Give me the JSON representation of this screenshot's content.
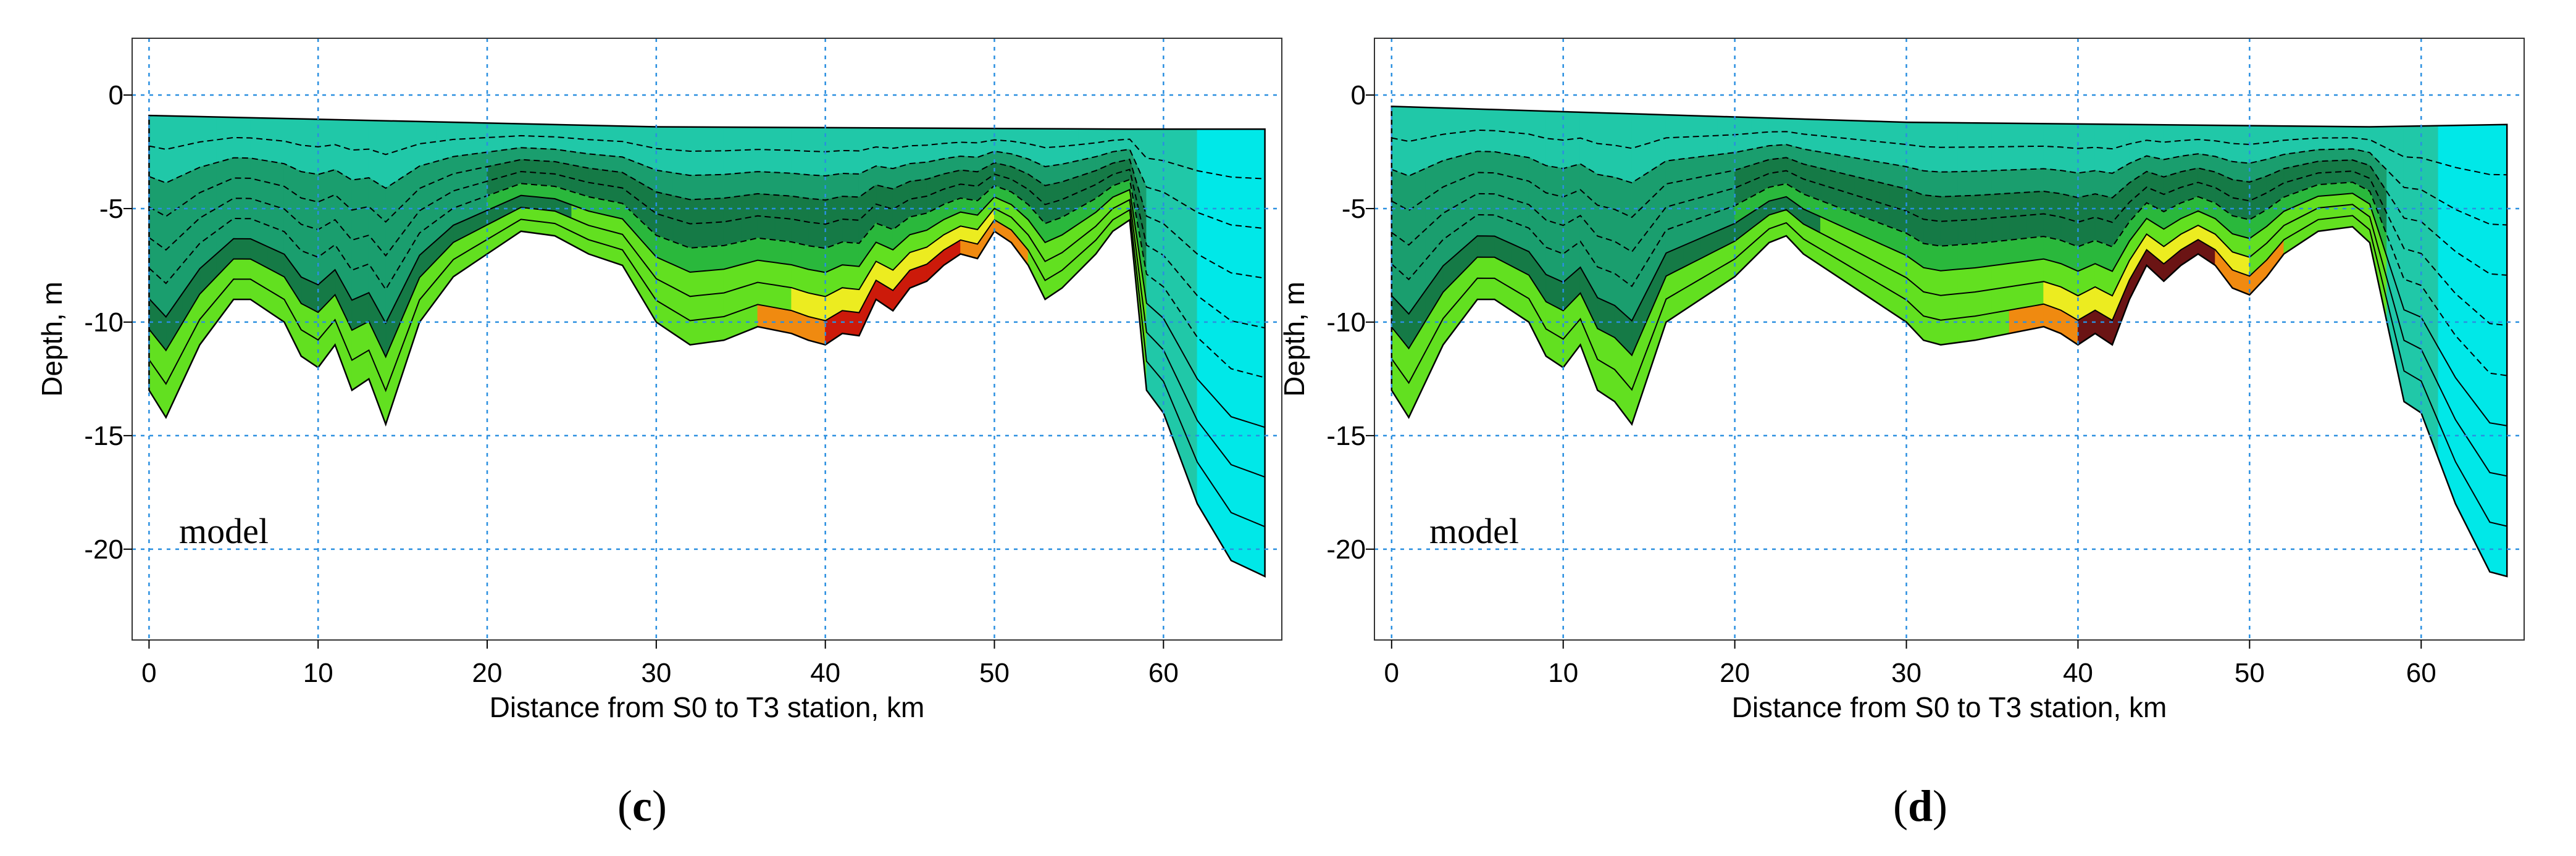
{
  "chart_data": [
    {
      "type": "area",
      "panel_label": "c",
      "annotation": "model",
      "xlabel": "Distance from S0 to T3 station, km",
      "ylabel": "Depth, m",
      "xlim": [
        -1,
        67
      ],
      "ylim": [
        -24,
        2.5
      ],
      "xticks": [
        0,
        10,
        20,
        30,
        40,
        50,
        60
      ],
      "yticks": [
        0,
        -5,
        -10,
        -15,
        -20
      ],
      "grid": true,
      "surface": {
        "x": [
          0,
          30,
          58,
          66
        ],
        "y": [
          -0.9,
          -1.4,
          -1.5,
          -1.5
        ]
      },
      "bottom": {
        "x": [
          0,
          1,
          3,
          5,
          6,
          8,
          9,
          10,
          11,
          12,
          13,
          14,
          16,
          18,
          20,
          22,
          24,
          26,
          28,
          30,
          31,
          32,
          34,
          36,
          38,
          39,
          40,
          41,
          42,
          43,
          44,
          45,
          46,
          47,
          48,
          49,
          50,
          51,
          52,
          53,
          54,
          56,
          57,
          58,
          59,
          60,
          62,
          64,
          66
        ],
        "y": [
          -13,
          -14.2,
          -11,
          -9,
          -9,
          -10,
          -11.5,
          -12,
          -11,
          -13,
          -12.5,
          -14.5,
          -10,
          -8,
          -7,
          -6,
          -6.2,
          -7,
          -7.5,
          -10,
          -10.5,
          -11,
          -10.8,
          -10.2,
          -10.5,
          -10.8,
          -11,
          -10.5,
          -10.6,
          -9,
          -9.5,
          -8.5,
          -8.2,
          -7.5,
          -7,
          -7.2,
          -6,
          -6.5,
          -7.5,
          -9,
          -8.5,
          -7,
          -6,
          -5.5,
          -13,
          -14,
          -18,
          -20.5,
          -21.2
        ]
      },
      "colorbands": [
        "#00e8e8",
        "#20c8a8",
        "#1a9e6e",
        "#157a46",
        "#2ab83c",
        "#62e020",
        "#ecec20",
        "#f08a10",
        "#cc1a0a",
        "#6b1414"
      ]
    },
    {
      "type": "area",
      "panel_label": "d",
      "annotation": "model",
      "xlabel": "Distance from S0 to T3 station, km",
      "ylabel": "Depth, m",
      "xlim": [
        -1,
        66
      ],
      "ylim": [
        -24,
        2.5
      ],
      "xticks": [
        0,
        10,
        20,
        30,
        40,
        50,
        60
      ],
      "yticks": [
        0,
        -5,
        -10,
        -15,
        -20
      ],
      "grid": true,
      "surface": {
        "x": [
          0,
          30,
          57,
          65
        ],
        "y": [
          -0.5,
          -1.2,
          -1.4,
          -1.3
        ]
      },
      "bottom": {
        "x": [
          0,
          1,
          3,
          5,
          6,
          8,
          9,
          10,
          11,
          12,
          13,
          14,
          16,
          18,
          20,
          22,
          23,
          24,
          26,
          28,
          30,
          31,
          32,
          34,
          36,
          38,
          39,
          40,
          41,
          42,
          43,
          44,
          45,
          46,
          47,
          48,
          49,
          50,
          51,
          52,
          53,
          54,
          56,
          57,
          58,
          59,
          60,
          62,
          64,
          65
        ],
        "y": [
          -13,
          -14.2,
          -11,
          -9,
          -9,
          -10,
          -11.5,
          -12,
          -11,
          -13,
          -13.5,
          -14.5,
          -10,
          -9,
          -8,
          -6.5,
          -6.2,
          -7,
          -8,
          -9,
          -10,
          -10.8,
          -11,
          -10.8,
          -10.5,
          -10.2,
          -10.5,
          -11,
          -10.5,
          -11,
          -9,
          -7.5,
          -8.2,
          -7.5,
          -7,
          -7.5,
          -8.5,
          -8.8,
          -8,
          -7,
          -6.5,
          -6,
          -5.8,
          -6.5,
          -10,
          -13.5,
          -14,
          -18,
          -21,
          -21.2
        ]
      },
      "colorbands": [
        "#00e8e8",
        "#20c8a8",
        "#1a9e6e",
        "#157a46",
        "#2ab83c",
        "#62e020",
        "#ecec20",
        "#f08a10",
        "#cc1a0a",
        "#6b1414"
      ]
    }
  ]
}
